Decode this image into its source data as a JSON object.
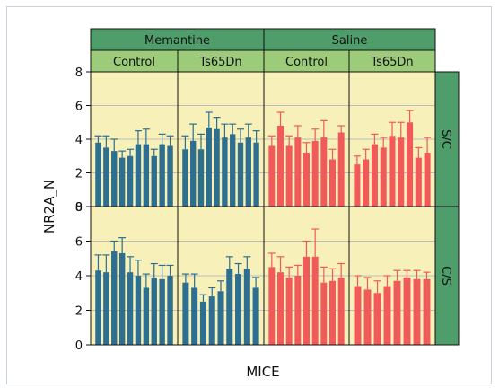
{
  "chart_data": {
    "type": "bar",
    "ylabel": "NR2A_N",
    "xlabel": "MICE",
    "ylim": [
      0,
      8
    ],
    "yticks": [
      0,
      2,
      4,
      6,
      8
    ],
    "grid": true,
    "facet_columns_outer": [
      "Memantine",
      "Saline"
    ],
    "facet_columns_inner": [
      "Control",
      "Ts65Dn"
    ],
    "facet_rows": [
      "S/C",
      "C/S"
    ],
    "colors": {
      "Memantine": "#2e6e8e",
      "Saline": "#f05a5a",
      "panel_bg": "#f7f0b8",
      "strip_outer": "#4f9d6b",
      "strip_inner": "#9ccb7a"
    },
    "panels": [
      {
        "row": "S/C",
        "column": "Memantine",
        "subcolumn": "Control",
        "values": [
          3.8,
          3.5,
          3.3,
          2.9,
          3.0,
          3.7,
          3.7,
          3.0,
          3.7,
          3.6
        ],
        "errors": [
          0.4,
          0.7,
          0.7,
          0.4,
          0.4,
          0.8,
          0.9,
          0.4,
          0.6,
          0.6
        ]
      },
      {
        "row": "S/C",
        "column": "Memantine",
        "subcolumn": "Ts65Dn",
        "values": [
          3.4,
          3.9,
          3.4,
          4.7,
          4.6,
          4.1,
          4.3,
          3.8,
          4.1,
          3.8
        ],
        "errors": [
          0.8,
          1.0,
          0.9,
          0.9,
          0.7,
          0.8,
          0.6,
          0.8,
          0.8,
          0.7
        ]
      },
      {
        "row": "S/C",
        "column": "Saline",
        "subcolumn": "Control",
        "values": [
          3.6,
          4.8,
          3.6,
          4.1,
          3.2,
          3.9,
          4.1,
          2.8,
          4.4
        ],
        "errors": [
          0.6,
          0.8,
          0.6,
          0.7,
          0.6,
          0.7,
          1.0,
          0.6,
          0.4
        ]
      },
      {
        "row": "S/C",
        "column": "Saline",
        "subcolumn": "Ts65Dn",
        "values": [
          2.5,
          2.8,
          3.7,
          3.5,
          4.2,
          4.1,
          5.0,
          2.9,
          3.2
        ],
        "errors": [
          0.5,
          0.6,
          0.6,
          0.6,
          0.8,
          0.9,
          0.7,
          0.6,
          0.9
        ]
      },
      {
        "row": "C/S",
        "column": "Memantine",
        "subcolumn": "Control",
        "values": [
          4.3,
          4.2,
          5.4,
          5.3,
          4.2,
          4.0,
          3.3,
          3.9,
          3.8,
          4.0
        ],
        "errors": [
          0.9,
          1.0,
          0.6,
          0.9,
          0.9,
          0.9,
          0.8,
          0.8,
          0.8,
          0.6
        ]
      },
      {
        "row": "C/S",
        "column": "Memantine",
        "subcolumn": "Ts65Dn",
        "values": [
          3.6,
          3.3,
          2.5,
          2.8,
          3.1,
          4.4,
          4.1,
          4.4,
          3.3
        ],
        "errors": [
          0.5,
          0.8,
          0.4,
          0.5,
          0.6,
          0.7,
          0.6,
          0.7,
          0.6
        ]
      },
      {
        "row": "C/S",
        "column": "Saline",
        "subcolumn": "Control",
        "values": [
          4.5,
          4.2,
          3.9,
          4.0,
          5.1,
          5.1,
          3.6,
          3.7,
          3.9
        ],
        "errors": [
          0.8,
          0.9,
          0.6,
          0.6,
          0.9,
          1.6,
          0.9,
          0.7,
          0.8
        ]
      },
      {
        "row": "C/S",
        "column": "Saline",
        "subcolumn": "Ts65Dn",
        "values": [
          3.4,
          3.2,
          3.0,
          3.4,
          3.7,
          3.9,
          3.8,
          3.8
        ],
        "errors": [
          0.6,
          0.7,
          0.7,
          0.6,
          0.6,
          0.4,
          0.5,
          0.4
        ]
      }
    ]
  }
}
